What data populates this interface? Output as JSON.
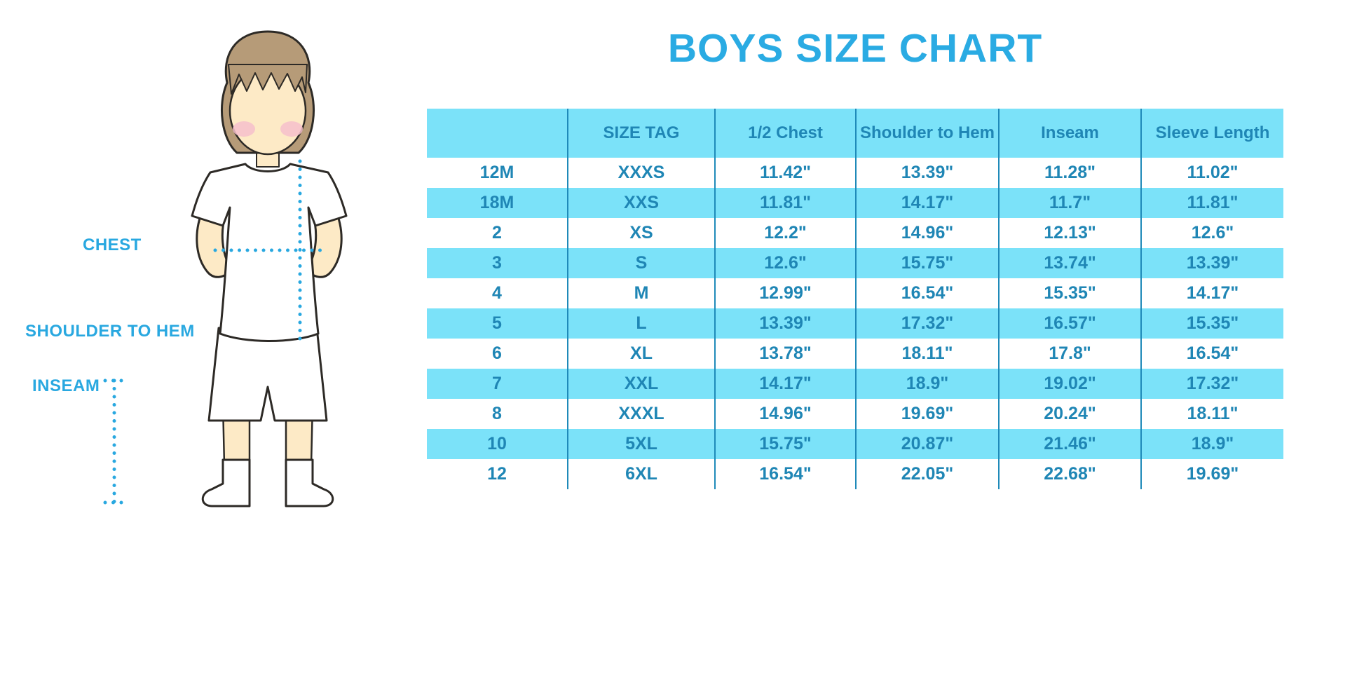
{
  "title": "BOYS SIZE CHART",
  "figure": {
    "labels": {
      "chest": "CHEST",
      "shoulder_to_hem": "SHOULDER TO HEM",
      "inseam": "INSEAM"
    }
  },
  "colors": {
    "title_blue": "#2aabe3",
    "label_blue": "#29a8e0",
    "row_cyan": "#7be2f9",
    "table_text": "#1f86b5",
    "divider": "#1f8ab9",
    "dotted_line": "#29a8e0",
    "skin": "#fdeac6",
    "hair": "#b69b78"
  },
  "chart_data": {
    "type": "table",
    "title": "BOYS SIZE CHART",
    "units": "inches",
    "columns": [
      "",
      "SIZE TAG",
      "1/2 Chest",
      "Shoulder to Hem",
      "Inseam",
      "Sleeve Length"
    ],
    "column_keys": [
      "size",
      "size-tag",
      "half-chest",
      "shoulder-to-hem",
      "inseam",
      "sleeve-length"
    ],
    "rows": [
      [
        "12M",
        "XXXS",
        "11.42\"",
        "13.39\"",
        "11.28\"",
        "11.02\""
      ],
      [
        "18M",
        "XXS",
        "11.81\"",
        "14.17\"",
        "11.7\"",
        "11.81\""
      ],
      [
        "2",
        "XS",
        "12.2\"",
        "14.96\"",
        "12.13\"",
        "12.6\""
      ],
      [
        "3",
        "S",
        "12.6\"",
        "15.75\"",
        "13.74\"",
        "13.39\""
      ],
      [
        "4",
        "M",
        "12.99\"",
        "16.54\"",
        "15.35\"",
        "14.17\""
      ],
      [
        "5",
        "L",
        "13.39\"",
        "17.32\"",
        "16.57\"",
        "15.35\""
      ],
      [
        "6",
        "XL",
        "13.78\"",
        "18.11\"",
        "17.8\"",
        "16.54\""
      ],
      [
        "7",
        "XXL",
        "14.17\"",
        "18.9\"",
        "19.02\"",
        "17.32\""
      ],
      [
        "8",
        "XXXL",
        "14.96\"",
        "19.69\"",
        "20.24\"",
        "18.11\""
      ],
      [
        "10",
        "5XL",
        "15.75\"",
        "20.87\"",
        "21.46\"",
        "18.9\""
      ],
      [
        "12",
        "6XL",
        "16.54\"",
        "22.05\"",
        "22.68\"",
        "19.69\""
      ]
    ]
  }
}
